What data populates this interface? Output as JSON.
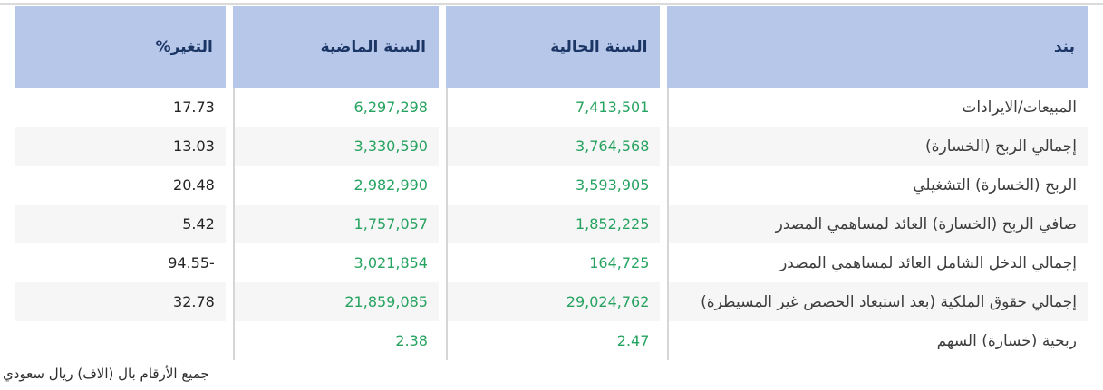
{
  "table": {
    "columns": [
      {
        "key": "item",
        "label": "بند"
      },
      {
        "key": "current",
        "label": "السنة الحالية"
      },
      {
        "key": "previous",
        "label": "السنة الماضية"
      },
      {
        "key": "change",
        "label": "التغير%"
      }
    ],
    "rows": [
      {
        "item": "المبيعات/الايرادات",
        "current": "7,413,501",
        "previous": "6,297,298",
        "change": "17.73"
      },
      {
        "item": "إجمالي الربح (الخسارة)",
        "current": "3,764,568",
        "previous": "3,330,590",
        "change": "13.03"
      },
      {
        "item": "الربح (الخسارة) التشغيلي",
        "current": "3,593,905",
        "previous": "2,982,990",
        "change": "20.48"
      },
      {
        "item": "صافي الربح (الخسارة) العائد لمساهمي المصدر",
        "current": "1,852,225",
        "previous": "1,757,057",
        "change": "5.42"
      },
      {
        "item": "إجمالي الدخل الشامل العائد لمساهمي المصدر",
        "current": "164,725",
        "previous": "3,021,854",
        "change": "-94.55"
      },
      {
        "item": "إجمالي حقوق الملكية (بعد استبعاد الحصص غير المسيطرة)",
        "current": "29,024,762",
        "previous": "21,859,085",
        "change": "32.78"
      },
      {
        "item": "ربحية (خسارة) السهم",
        "current": "2.47",
        "previous": "2.38",
        "change": ""
      }
    ]
  },
  "footer": {
    "note": "جميع الأرقام بال (الاف) ريال سعودي"
  },
  "colors": {
    "header_bg": "#b6c7e9",
    "header_text": "#1b3665",
    "positive_value": "#26a360",
    "item_text": "#3d3d3d",
    "change_text": "#242424",
    "row_alt_bg": "#f6f6f6",
    "separator": "#d6d6d6"
  }
}
